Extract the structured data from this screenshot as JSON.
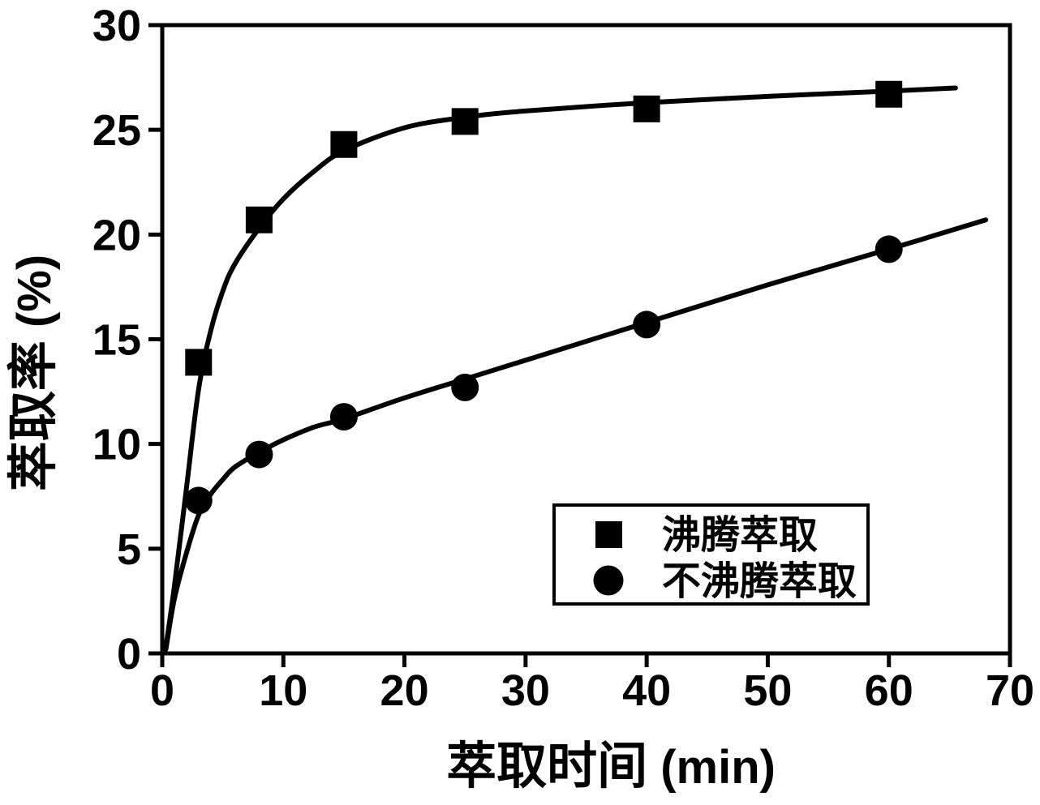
{
  "page": {
    "background": "#ffffff"
  },
  "chart_data": {
    "type": "scatter",
    "title": "",
    "xlabel": "萃取时间 (min)",
    "ylabel": "萃取率 (%)",
    "xlim": [
      0,
      70
    ],
    "ylim": [
      0,
      30
    ],
    "xticks": [
      0,
      10,
      20,
      30,
      40,
      50,
      60,
      70
    ],
    "yticks": [
      0,
      5,
      10,
      15,
      20,
      25,
      30
    ],
    "grid": false,
    "legend": {
      "framed": true,
      "position": "inside-center-right",
      "entries": [
        "沸腾萃取",
        "不沸腾萃取"
      ]
    },
    "colors": {
      "foreground": "#000000",
      "background": "#ffffff"
    },
    "series": [
      {
        "name": "沸腾萃取",
        "marker": "square",
        "color": "#000000",
        "x": [
          3,
          8,
          15,
          25,
          40,
          60
        ],
        "y": [
          13.9,
          20.7,
          24.3,
          25.4,
          26.0,
          26.7
        ],
        "fit_x": [
          0.3,
          1,
          2,
          3,
          4,
          5,
          6,
          8,
          10,
          12.5,
          15,
          20,
          25,
          30,
          40,
          50,
          60,
          65.5
        ],
        "fit_y": [
          0.3,
          3.2,
          7.9,
          12.6,
          15.4,
          17.3,
          18.6,
          20.3,
          21.7,
          23.0,
          24.0,
          25.1,
          25.6,
          25.9,
          26.3,
          26.6,
          26.85,
          27.0
        ]
      },
      {
        "name": "不沸腾萃取",
        "marker": "circle",
        "color": "#000000",
        "x": [
          3,
          8,
          15,
          25,
          40,
          60
        ],
        "y": [
          7.3,
          9.5,
          11.3,
          12.7,
          15.7,
          19.3
        ],
        "fit_x": [
          0.3,
          1,
          2,
          3,
          4,
          5,
          6,
          8,
          10,
          12.5,
          15,
          20,
          25,
          30,
          40,
          50,
          60,
          68
        ],
        "fit_y": [
          0.2,
          2.6,
          4.8,
          6.6,
          7.6,
          8.3,
          8.9,
          9.6,
          10.2,
          10.8,
          11.2,
          12.2,
          13.1,
          14.0,
          15.8,
          17.6,
          19.3,
          20.7
        ]
      }
    ]
  }
}
